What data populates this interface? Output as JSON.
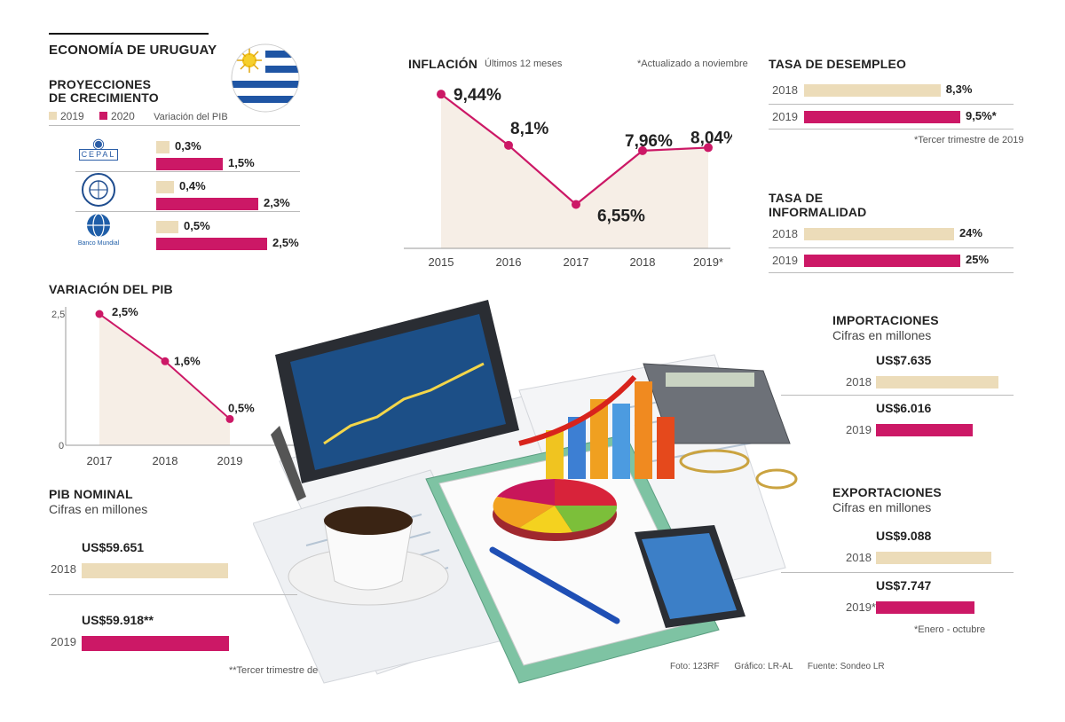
{
  "colors": {
    "beige": "#ecdcb9",
    "magenta": "#cc1866",
    "area": "#f6eee6",
    "line": "#cc1866"
  },
  "header": {
    "title": "ECONOMÍA DE URUGUAY"
  },
  "proyecciones": {
    "title_line1": "PROYECCIONES",
    "title_line2": "DE CRECIMIENTO",
    "legend_2019": "2019",
    "legend_2020": "2020",
    "legend_note": "Variación del PIB",
    "orgs": [
      {
        "logo": "cepal-logo",
        "logo_text": "CEPAL",
        "v2019": 0.3,
        "v2020": 1.5,
        "l2019": "0,3%",
        "l2020": "1,5%"
      },
      {
        "logo": "fmi-logo",
        "logo_text": "FONDO MONETARIO INTERNACIONAL",
        "v2019": 0.4,
        "v2020": 2.3,
        "l2019": "0,4%",
        "l2020": "2,3%"
      },
      {
        "logo": "banco-mundial-logo",
        "logo_text": "Banco Mundial",
        "v2019": 0.5,
        "v2020": 2.5,
        "l2019": "0,5%",
        "l2020": "2,5%"
      }
    ]
  },
  "inflacion": {
    "title": "INFLACIÓN",
    "subtitle": "Últimos 12 meses",
    "note": "*Actualizado a noviembre"
  },
  "desempleo": {
    "title": "TASA DE DESEMPLEO",
    "rows": [
      {
        "year": "2018",
        "value": 8.3,
        "label": "8,3%"
      },
      {
        "year": "2019",
        "value": 9.5,
        "label": "9,5%*"
      }
    ],
    "note": "*Tercer trimestre de 2019"
  },
  "informalidad": {
    "title_line1": "TASA DE",
    "title_line2": "INFORMALIDAD",
    "rows": [
      {
        "year": "2018",
        "value": 24,
        "label": "24%"
      },
      {
        "year": "2019",
        "value": 25,
        "label": "25%"
      }
    ]
  },
  "variacion": {
    "title": "VARIACIÓN DEL PIB"
  },
  "pib_nominal": {
    "title": "PIB NOMINAL",
    "subtitle": "Cifras en millones",
    "rows": [
      {
        "year": "2018",
        "value": 59651,
        "label": "US$59.651"
      },
      {
        "year": "2019",
        "value": 59918,
        "label": "US$59.918**"
      }
    ],
    "note": "**Tercer trimestre de 2019"
  },
  "importaciones": {
    "title": "IMPORTACIONES",
    "subtitle": "Cifras en millones",
    "rows": [
      {
        "year": "2018",
        "value": 7635,
        "label": "US$7.635"
      },
      {
        "year": "2019",
        "value": 6016,
        "label": "US$6.016"
      }
    ]
  },
  "exportaciones": {
    "title": "EXPORTACIONES",
    "subtitle": "Cifras en millones",
    "rows": [
      {
        "year": "2018",
        "value": 9088,
        "label": "US$9.088"
      },
      {
        "year": "2019*",
        "value": 7747,
        "label": "US$7.747"
      }
    ],
    "note": "*Enero - octubre"
  },
  "credits": {
    "photo": "Foto: 123RF",
    "graphic": "Gráfico: LR-AL",
    "source": "Fuente: Sondeo LR"
  },
  "chart_data": [
    {
      "type": "bar",
      "title": "PROYECCIONES DE CRECIMIENTO",
      "categories": [
        "CEPAL",
        "FMI",
        "Banco Mundial"
      ],
      "series": [
        {
          "name": "2019",
          "values": [
            0.3,
            0.4,
            0.5
          ]
        },
        {
          "name": "2020",
          "values": [
            1.5,
            2.3,
            2.5
          ]
        }
      ],
      "ylabel": "Variación del PIB"
    },
    {
      "type": "area",
      "title": "INFLACIÓN",
      "x": [
        "2015",
        "2016",
        "2017",
        "2018",
        "2019*"
      ],
      "values": [
        9.44,
        8.1,
        6.55,
        7.96,
        8.04
      ],
      "labels": [
        "9,44%",
        "8,1%",
        "6,55%",
        "7,96%",
        "8,04%"
      ],
      "ylim": [
        5.4,
        9.7
      ],
      "grid": false
    },
    {
      "type": "area",
      "title": "VARIACIÓN DEL PIB",
      "x": [
        "2017",
        "2018",
        "2019"
      ],
      "values": [
        2.5,
        1.6,
        0.5
      ],
      "labels": [
        "2,5%",
        "1,6%",
        "0,5%"
      ],
      "ylim": [
        0,
        2.5
      ],
      "yticks": [
        "0",
        "2,5"
      ]
    },
    {
      "type": "bar",
      "title": "TASA DE DESEMPLEO",
      "categories": [
        "2018",
        "2019"
      ],
      "values": [
        8.3,
        9.5
      ]
    },
    {
      "type": "bar",
      "title": "TASA DE INFORMALIDAD",
      "categories": [
        "2018",
        "2019"
      ],
      "values": [
        24,
        25
      ]
    },
    {
      "type": "bar",
      "title": "PIB NOMINAL",
      "categories": [
        "2018",
        "2019"
      ],
      "values": [
        59651,
        59918
      ]
    },
    {
      "type": "bar",
      "title": "IMPORTACIONES",
      "categories": [
        "2018",
        "2019"
      ],
      "values": [
        7635,
        6016
      ]
    },
    {
      "type": "bar",
      "title": "EXPORTACIONES",
      "categories": [
        "2018",
        "2019*"
      ],
      "values": [
        9088,
        7747
      ]
    }
  ]
}
